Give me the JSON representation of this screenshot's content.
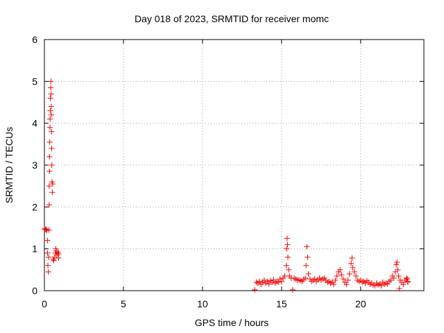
{
  "chart_data": {
    "type": "scatter",
    "title": "Day 018 of 2023, SRMTID for receiver momc",
    "xlabel": "GPS time / hours",
    "ylabel": "SRMTID / TECUs",
    "xlim": [
      0,
      24
    ],
    "ylim": [
      0,
      6
    ],
    "x_ticks": [
      0,
      5,
      10,
      15,
      20
    ],
    "y_ticks": [
      0,
      1,
      2,
      3,
      4,
      5,
      6
    ],
    "grid": true,
    "legend": "none",
    "marker_color": "#ff0000",
    "series": [
      {
        "marker": "plus",
        "points": [
          [
            0.0,
            1.48
          ],
          [
            0.05,
            1.47
          ],
          [
            0.1,
            1.46
          ],
          [
            0.15,
            1.44
          ],
          [
            0.2,
            1.2
          ],
          [
            0.2,
            0.9
          ],
          [
            0.22,
            0.6
          ],
          [
            0.25,
            0.45
          ],
          [
            0.27,
            0.8
          ],
          [
            0.28,
            1.45
          ],
          [
            0.3,
            2.05
          ],
          [
            0.3,
            2.5
          ],
          [
            0.32,
            2.85
          ],
          [
            0.32,
            3.2
          ],
          [
            0.34,
            3.55
          ],
          [
            0.35,
            3.9
          ],
          [
            0.36,
            4.1
          ],
          [
            0.37,
            4.3
          ],
          [
            0.38,
            4.6
          ],
          [
            0.4,
            4.85
          ],
          [
            0.41,
            5.0
          ],
          [
            0.42,
            4.7
          ],
          [
            0.43,
            4.4
          ],
          [
            0.44,
            4.2
          ],
          [
            0.45,
            3.8
          ],
          [
            0.46,
            3.4
          ],
          [
            0.47,
            3.0
          ],
          [
            0.48,
            2.6
          ],
          [
            0.5,
            2.35
          ],
          [
            0.52,
            2.55
          ],
          [
            0.55,
            0.75
          ],
          [
            0.6,
            0.72
          ],
          [
            0.65,
            0.8
          ],
          [
            0.7,
            0.9
          ],
          [
            0.72,
            1.0
          ],
          [
            0.75,
            0.95
          ],
          [
            0.8,
            0.85
          ],
          [
            0.85,
            0.92
          ],
          [
            0.9,
            0.88
          ],
          [
            0.9,
            0.78
          ],
          [
            13.3,
            0.02
          ],
          [
            13.4,
            0.2
          ],
          [
            13.5,
            0.18
          ],
          [
            13.6,
            0.22
          ],
          [
            13.7,
            0.15
          ],
          [
            13.8,
            0.2
          ],
          [
            13.9,
            0.25
          ],
          [
            14.0,
            0.18
          ],
          [
            14.1,
            0.22
          ],
          [
            14.2,
            0.16
          ],
          [
            14.3,
            0.24
          ],
          [
            14.4,
            0.2
          ],
          [
            14.5,
            0.26
          ],
          [
            14.6,
            0.18
          ],
          [
            14.7,
            0.22
          ],
          [
            14.8,
            0.2
          ],
          [
            14.9,
            0.28
          ],
          [
            15.0,
            0.22
          ],
          [
            15.1,
            0.3
          ],
          [
            15.2,
            0.35
          ],
          [
            15.3,
            0.6
          ],
          [
            15.32,
            1.0
          ],
          [
            15.35,
            1.25
          ],
          [
            15.38,
            1.1
          ],
          [
            15.4,
            0.8
          ],
          [
            15.45,
            0.5
          ],
          [
            15.5,
            0.35
          ],
          [
            15.6,
            0.3
          ],
          [
            15.7,
            0.02
          ],
          [
            15.8,
            0.3
          ],
          [
            15.9,
            0.28
          ],
          [
            16.0,
            0.25
          ],
          [
            16.1,
            0.26
          ],
          [
            16.2,
            0.24
          ],
          [
            16.3,
            0.22
          ],
          [
            16.4,
            0.27
          ],
          [
            16.5,
            0.3
          ],
          [
            16.55,
            0.6
          ],
          [
            16.6,
            1.05
          ],
          [
            16.65,
            0.8
          ],
          [
            16.7,
            0.4
          ],
          [
            16.8,
            0.28
          ],
          [
            16.9,
            0.22
          ],
          [
            17.0,
            0.25
          ],
          [
            17.1,
            0.28
          ],
          [
            17.2,
            0.22
          ],
          [
            17.3,
            0.26
          ],
          [
            17.4,
            0.3
          ],
          [
            17.5,
            0.25
          ],
          [
            17.6,
            0.28
          ],
          [
            17.7,
            0.3
          ],
          [
            17.8,
            0.25
          ],
          [
            17.9,
            0.2
          ],
          [
            18.0,
            0.22
          ],
          [
            18.1,
            0.18
          ],
          [
            18.2,
            0.2
          ],
          [
            18.3,
            0.15
          ],
          [
            18.4,
            0.25
          ],
          [
            18.5,
            0.35
          ],
          [
            18.6,
            0.45
          ],
          [
            18.7,
            0.5
          ],
          [
            18.8,
            0.38
          ],
          [
            18.9,
            0.28
          ],
          [
            19.0,
            0.2
          ],
          [
            19.1,
            0.15
          ],
          [
            19.2,
            0.25
          ],
          [
            19.3,
            0.4
          ],
          [
            19.4,
            0.65
          ],
          [
            19.45,
            0.78
          ],
          [
            19.5,
            0.55
          ],
          [
            19.6,
            0.45
          ],
          [
            19.7,
            0.35
          ],
          [
            19.8,
            0.25
          ],
          [
            19.9,
            0.22
          ],
          [
            20.0,
            0.25
          ],
          [
            20.1,
            0.2
          ],
          [
            20.2,
            0.22
          ],
          [
            20.3,
            0.18
          ],
          [
            20.4,
            0.24
          ],
          [
            20.5,
            0.2
          ],
          [
            20.6,
            0.15
          ],
          [
            20.7,
            0.18
          ],
          [
            20.8,
            0.14
          ],
          [
            20.9,
            0.12
          ],
          [
            21.0,
            0.18
          ],
          [
            21.1,
            0.14
          ],
          [
            21.2,
            0.16
          ],
          [
            21.3,
            0.12
          ],
          [
            21.4,
            0.2
          ],
          [
            21.5,
            0.15
          ],
          [
            21.6,
            0.18
          ],
          [
            21.7,
            0.16
          ],
          [
            21.8,
            0.22
          ],
          [
            21.9,
            0.25
          ],
          [
            22.0,
            0.35
          ],
          [
            22.1,
            0.3
          ],
          [
            22.2,
            0.45
          ],
          [
            22.25,
            0.62
          ],
          [
            22.3,
            0.68
          ],
          [
            22.35,
            0.5
          ],
          [
            22.4,
            0.35
          ],
          [
            22.45,
            0.05
          ],
          [
            22.5,
            0.25
          ],
          [
            22.6,
            0.2
          ],
          [
            22.7,
            0.15
          ],
          [
            22.8,
            0.25
          ],
          [
            22.9,
            0.3
          ],
          [
            22.95,
            0.28
          ],
          [
            22.98,
            0.22
          ],
          [
            22.99,
            0.2
          ]
        ]
      }
    ]
  }
}
